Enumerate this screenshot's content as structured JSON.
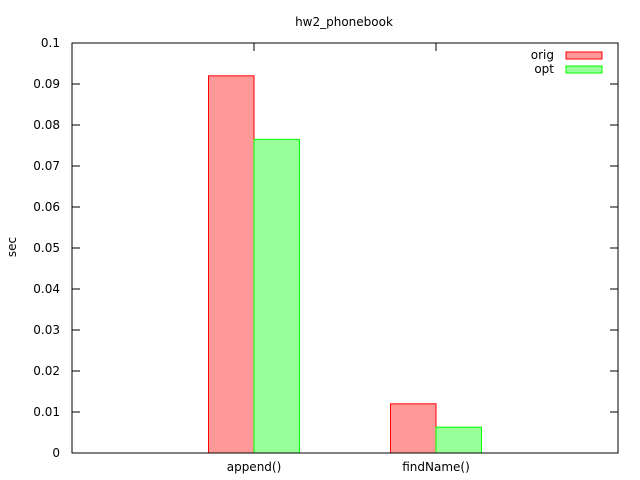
{
  "chart_data": {
    "type": "bar",
    "title": "hw2_phonebook",
    "xlabel": "",
    "ylabel": "sec",
    "categories": [
      "append()",
      "findName()"
    ],
    "series": [
      {
        "name": "orig",
        "values": [
          0.092,
          0.012
        ],
        "fill": "#ff9999",
        "stroke": "#ff0000"
      },
      {
        "name": "opt",
        "values": [
          0.0765,
          0.0063
        ],
        "fill": "#99ff99",
        "stroke": "#00ff00"
      }
    ],
    "ylim": [
      0,
      0.1
    ],
    "yticks": [
      "0",
      "0.01",
      "0.02",
      "0.03",
      "0.04",
      "0.05",
      "0.06",
      "0.07",
      "0.08",
      "0.09",
      "0.1"
    ],
    "grid": false,
    "legend_position": "top-right"
  }
}
